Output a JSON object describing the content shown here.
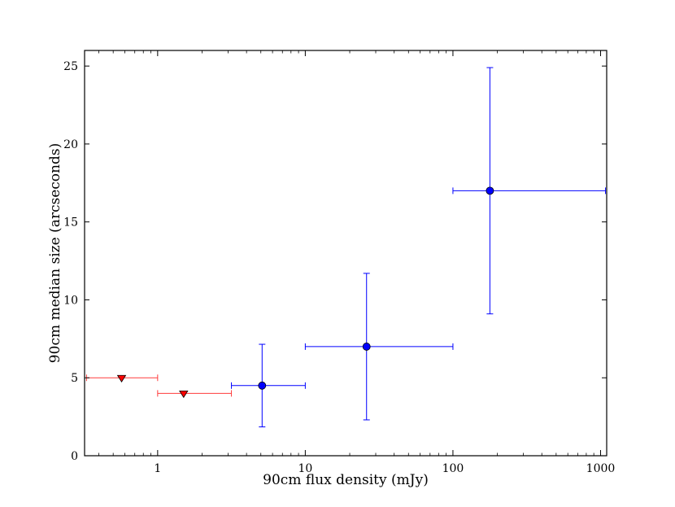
{
  "chart_data": {
    "type": "scatter",
    "xlabel": "90cm flux density (mJy)",
    "ylabel": "90cm median size (arcseconds)",
    "x_scale": "log",
    "xlim": [
      0.32,
      1100
    ],
    "ylim": [
      0,
      26
    ],
    "x_ticks": [
      1,
      10,
      100,
      1000
    ],
    "x_tick_labels": [
      "1",
      "10",
      "100",
      "1000"
    ],
    "y_ticks": [
      0,
      5,
      10,
      15,
      20,
      25
    ],
    "y_tick_labels": [
      "0",
      "5",
      "10",
      "15",
      "20",
      "25"
    ],
    "grid": false,
    "legend": "none",
    "series": [
      {
        "marker": "triangle-down",
        "color": "#ff0000",
        "line_color": "#ff3b3b",
        "points": [
          {
            "x": 0.57,
            "y": 5.0,
            "x_err_low": 0.33,
            "x_err_high": 1.0
          },
          {
            "x": 1.5,
            "y": 4.0,
            "x_err_low": 1.0,
            "x_err_high": 3.16
          }
        ]
      },
      {
        "marker": "circle",
        "color": "#0000ff",
        "line_color": "#0000ff",
        "points": [
          {
            "x": 5.1,
            "y": 4.5,
            "x_err_low": 3.16,
            "x_err_high": 10,
            "y_err_low": 1.85,
            "y_err_high": 7.15
          },
          {
            "x": 26,
            "y": 7.0,
            "x_err_low": 10,
            "x_err_high": 100,
            "y_err_low": 2.3,
            "y_err_high": 11.7
          },
          {
            "x": 178,
            "y": 17.0,
            "x_err_low": 100,
            "x_err_high": 1080,
            "y_err_low": 9.1,
            "y_err_high": 24.9
          }
        ]
      }
    ]
  }
}
